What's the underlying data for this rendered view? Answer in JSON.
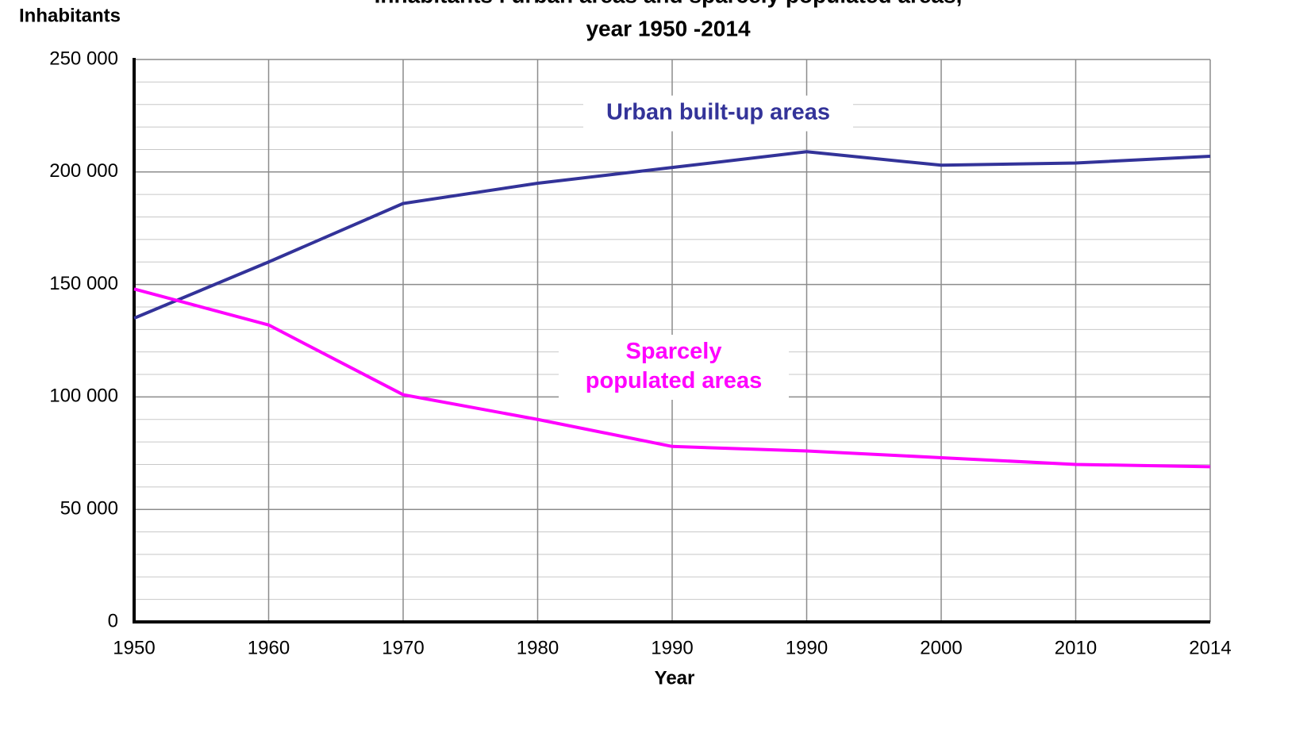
{
  "chart_data": {
    "type": "line",
    "title": [
      "Inhabitants i urban areas and sparcely populated areas,",
      "year 1950 -2014"
    ],
    "y_label": "Inhabitants",
    "x_label": "Year",
    "categories": [
      "1950",
      "1960",
      "1970",
      "1980",
      "1990",
      "1990",
      "2000",
      "2010",
      "2014"
    ],
    "series": [
      {
        "name": "Urban built-up areas",
        "color": "#333399",
        "values": [
          135000,
          160000,
          186000,
          195000,
          202000,
          209000,
          203000,
          204000,
          207000
        ]
      },
      {
        "name": [
          "Sparcely",
          "populated areas"
        ],
        "color": "#ff00ff",
        "values": [
          148000,
          132000,
          101000,
          90000,
          78000,
          76000,
          73000,
          70000,
          69000
        ]
      }
    ],
    "ylim": [
      0,
      250000
    ],
    "yticks": [
      0,
      {
        "value": 50000,
        "label": "50 000"
      },
      {
        "value": 100000,
        "label": "100 000"
      },
      {
        "value": 150000,
        "label": "150 000"
      },
      {
        "value": 200000,
        "label": "200 000"
      },
      {
        "value": 250000,
        "label": "250 000"
      }
    ],
    "minor_grid_step": 10000,
    "grid": true
  }
}
